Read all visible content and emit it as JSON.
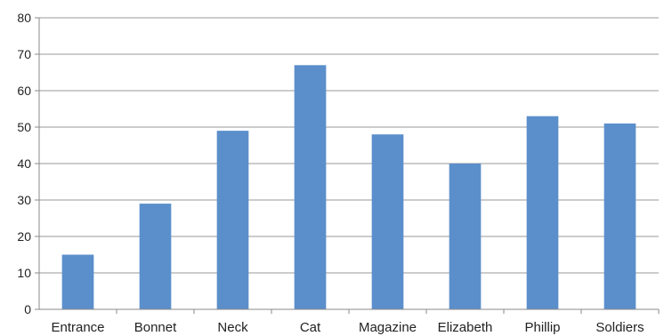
{
  "chart_data": {
    "type": "bar",
    "title": "",
    "xlabel": "",
    "ylabel": "",
    "categories": [
      "Entrance",
      "Bonnet",
      "Neck",
      "Cat",
      "Magazine",
      "Elizabeth",
      "Phillip",
      "Soldiers"
    ],
    "values": [
      15,
      29,
      49,
      67,
      48,
      40,
      53,
      51
    ],
    "ylim": [
      0,
      80
    ],
    "yticks": [
      0,
      10,
      20,
      30,
      40,
      50,
      60,
      70,
      80
    ],
    "grid": true,
    "legend": "none",
    "bar_color": "#5b8fcb",
    "grid_color": "#9a9a9a"
  }
}
